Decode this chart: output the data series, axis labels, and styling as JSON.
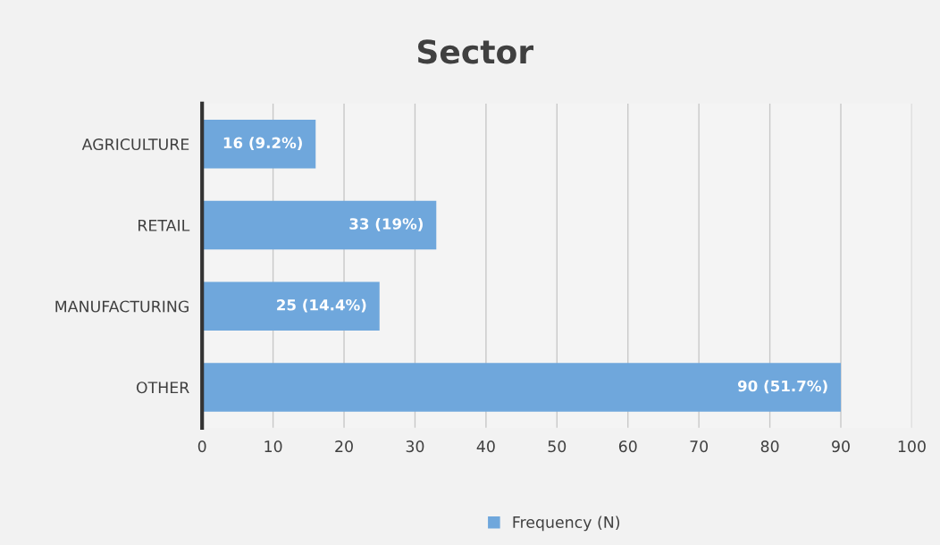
{
  "chart_data": {
    "type": "bar",
    "orientation": "horizontal",
    "title": "Sector",
    "categories": [
      "AGRICULTURE",
      "RETAIL",
      "MANUFACTURING",
      "OTHER"
    ],
    "series": [
      {
        "name": "Frequency (N)",
        "color": "#6fa7dc",
        "values": [
          16,
          33,
          25,
          90
        ],
        "value_labels": [
          "16 (9.2%)",
          "33 (19%)",
          "25 (14.4%)",
          "90 (51.7%)"
        ]
      }
    ],
    "xlim": [
      0,
      100
    ],
    "xticks": [
      0,
      10,
      20,
      30,
      40,
      50,
      60,
      70,
      80,
      90,
      100
    ],
    "grid": "x",
    "legend": "bottom"
  }
}
